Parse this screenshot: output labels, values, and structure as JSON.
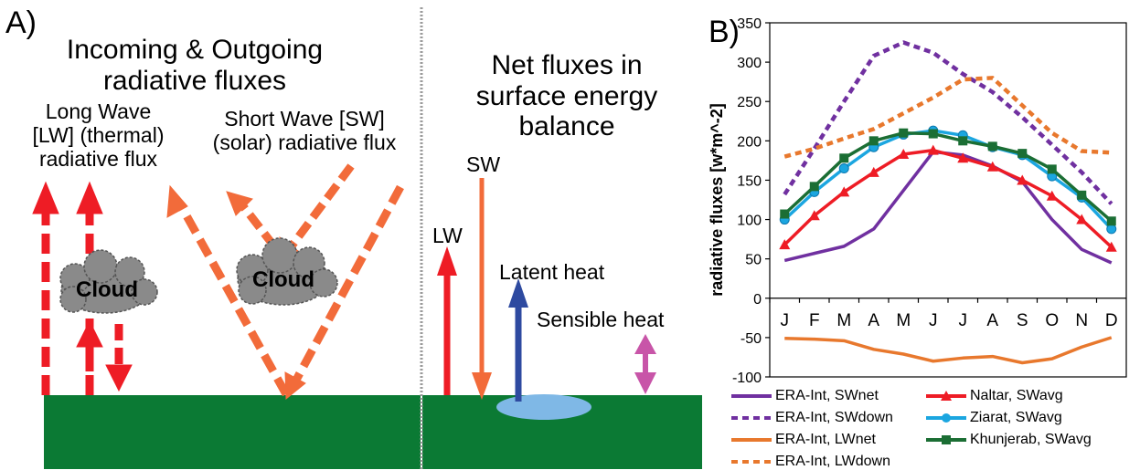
{
  "panel_a": {
    "letter": "A)",
    "title": "Incoming & Outgoing\nradiative fluxes",
    "lw_label": "Long Wave\n[LW] (thermal)\nradiative flux",
    "sw_label": "Short Wave [SW]\n(solar) radiative flux",
    "cloud_left": "Cloud",
    "cloud_right": "Cloud",
    "net_title": "Net fluxes in\nsurface energy\nbalance",
    "net_sw": "SW",
    "net_lw": "LW",
    "latent": "Latent heat",
    "sensible": "Sensible heat"
  },
  "colors": {
    "sky_green": "#0b7a34",
    "lw_red": "#ee1c25",
    "sw_orange": "#f26b3a",
    "latent_blue": "#2e4aa0",
    "sensible_pink": "#c855a8",
    "cloud_gray": "#8a8a8a",
    "lake_blue": "#7fb8e6",
    "divider": "#9a9a9a"
  },
  "panel_b": {
    "letter": "B)"
  },
  "chart_data": {
    "type": "line",
    "categories": [
      "J",
      "F",
      "M",
      "A",
      "M",
      "J",
      "J",
      "A",
      "S",
      "O",
      "N",
      "D"
    ],
    "ylabel": "radiative fluxes [w*m^-2]",
    "ylim": [
      -100,
      350
    ],
    "yticks": [
      "-100",
      "-50",
      "0",
      "50",
      "100",
      "150",
      "200",
      "250",
      "300",
      "350"
    ],
    "grid": false,
    "series": [
      {
        "name": "ERA-Int, SWnet",
        "color": "#7030a0",
        "dash": "solid",
        "marker": "none",
        "values": [
          48,
          57,
          66,
          88,
          137,
          186,
          182,
          168,
          148,
          100,
          62,
          45
        ]
      },
      {
        "name": "ERA-Int, SWdown",
        "color": "#7030a0",
        "dash": "dash",
        "marker": "none",
        "values": [
          132,
          190,
          250,
          308,
          325,
          312,
          285,
          262,
          230,
          195,
          160,
          120
        ]
      },
      {
        "name": "ERA-Int, LWnet",
        "color": "#e8782d",
        "dash": "solid",
        "marker": "none",
        "values": [
          -51,
          -52,
          -54,
          -65,
          -71,
          -80,
          -76,
          -74,
          -82,
          -77,
          -62,
          -50
        ]
      },
      {
        "name": "ERA-Int, LWdown",
        "color": "#e8782d",
        "dash": "dash",
        "marker": "none",
        "values": [
          180,
          190,
          203,
          215,
          235,
          255,
          278,
          280,
          245,
          210,
          187,
          185
        ]
      },
      {
        "name": "Naltar, SWavg",
        "color": "#ee1c25",
        "dash": "solid",
        "marker": "triangle",
        "values": [
          68,
          105,
          135,
          160,
          183,
          188,
          178,
          167,
          150,
          130,
          100,
          65
        ]
      },
      {
        "name": "Ziarat, SWavg",
        "color": "#1ba6e0",
        "dash": "solid",
        "marker": "circle",
        "values": [
          100,
          135,
          165,
          192,
          208,
          213,
          207,
          192,
          182,
          155,
          128,
          88
        ]
      },
      {
        "name": "Khunjerab, SWavg",
        "color": "#1b6e34",
        "dash": "solid",
        "marker": "square",
        "values": [
          107,
          142,
          178,
          200,
          210,
          209,
          200,
          193,
          184,
          164,
          131,
          98
        ]
      }
    ]
  }
}
